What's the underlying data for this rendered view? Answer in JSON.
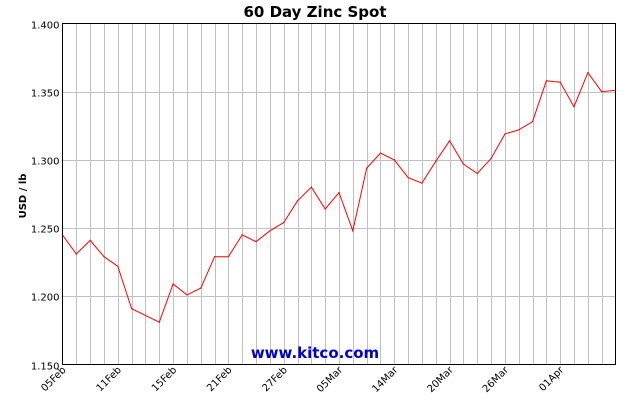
{
  "chart_data": {
    "type": "line",
    "title": "60 Day Zinc Spot",
    "xlabel": "",
    "ylabel": "USD / lb",
    "ylim": [
      1.15,
      1.4
    ],
    "y_ticks": [
      "1.400",
      "1.350",
      "1.300",
      "1.250",
      "1.200",
      "1.150"
    ],
    "x_tick_labels": [
      "05Feb",
      "11Feb",
      "15Feb",
      "21Feb",
      "27Feb",
      "05Mar",
      "14Mar",
      "20Mar",
      "26Mar",
      "01Apr"
    ],
    "grid": true,
    "legend": "none",
    "series": [
      {
        "values": [
          1.245,
          1.231,
          1.241,
          1.229,
          1.222,
          1.191,
          1.186,
          1.181,
          1.209,
          1.201,
          1.206,
          1.229,
          1.229,
          1.245,
          1.24,
          1.248,
          1.254,
          1.27,
          1.28,
          1.264,
          1.276,
          1.248,
          1.294,
          1.305,
          1.3,
          1.287,
          1.283,
          1.299,
          1.314,
          1.297,
          1.29,
          1.301,
          1.319,
          1.322,
          1.328,
          1.358,
          1.357,
          1.339,
          1.364,
          1.35,
          1.351
        ]
      }
    ],
    "colors": {
      "line": "#ff0000",
      "grid": "#c0c0c0",
      "axis": "#000000"
    }
  },
  "watermark": "www.kitco.com"
}
